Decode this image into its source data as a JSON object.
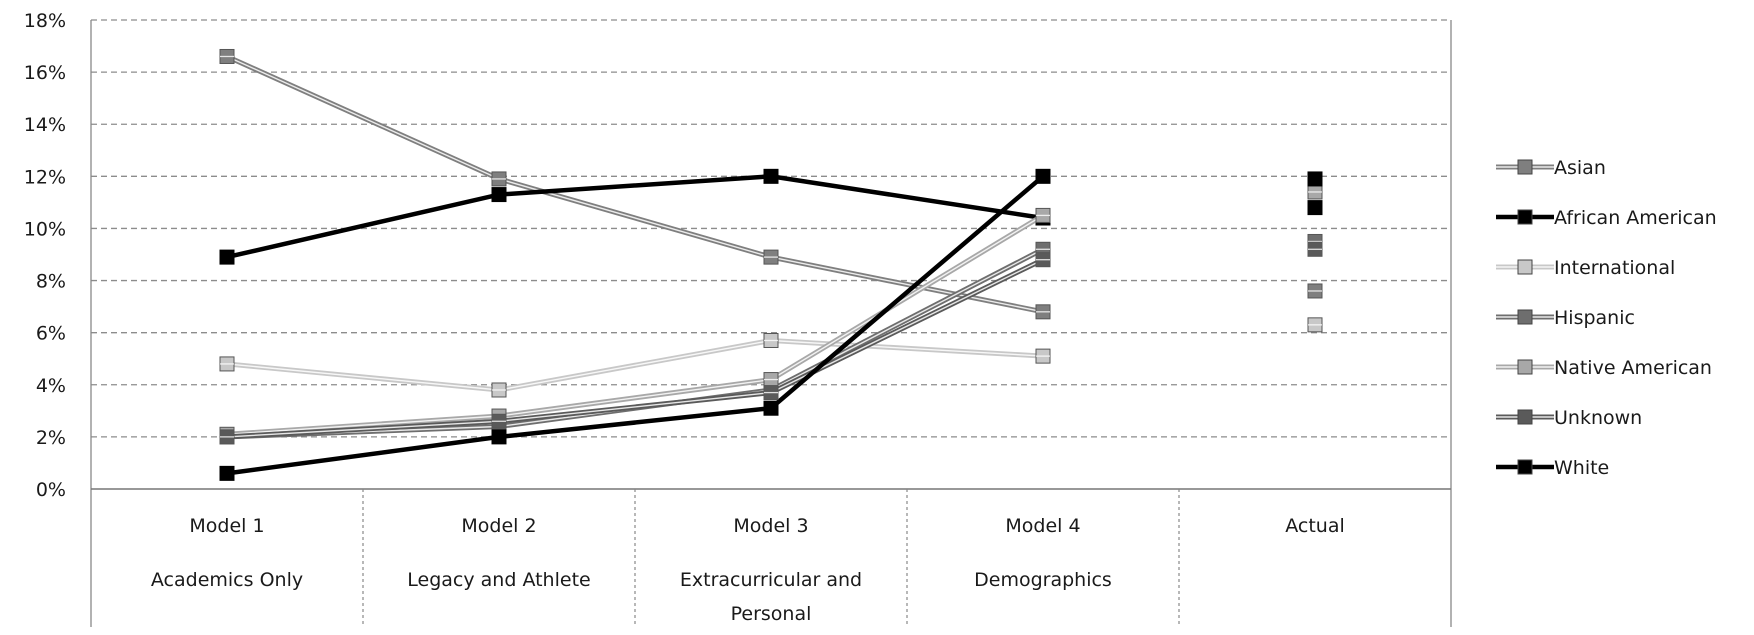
{
  "chart_data": {
    "type": "line",
    "title": "",
    "xlabel": "",
    "ylabel": "",
    "ylim": [
      0,
      18
    ],
    "y_ticks": [
      "0%",
      "2%",
      "4%",
      "6%",
      "8%",
      "10%",
      "12%",
      "14%",
      "16%",
      "18%"
    ],
    "grid": true,
    "legend_position": "right",
    "categories": [
      {
        "line1": "Model 1",
        "line2": "Academics Only"
      },
      {
        "line1": "Model 2",
        "line2": "Legacy and Athlete"
      },
      {
        "line1": "Model 3",
        "line2": "Extracurricular and Personal"
      },
      {
        "line1": "Model 4",
        "line2": "Demographics"
      },
      {
        "line1": "Actual",
        "line2": ""
      }
    ],
    "series": [
      {
        "name": "Asian",
        "color": "#7f7f7f",
        "style": "double",
        "values": [
          16.6,
          11.9,
          8.9,
          6.8,
          7.6
        ]
      },
      {
        "name": "African American",
        "color": "#000000",
        "style": "solid",
        "values": [
          8.9,
          11.3,
          12.0,
          10.4,
          10.8
        ]
      },
      {
        "name": "International",
        "color": "#c8c8c8",
        "style": "double",
        "values": [
          4.8,
          3.8,
          5.7,
          5.1,
          6.3
        ]
      },
      {
        "name": "Hispanic",
        "color": "#6e6e6e",
        "style": "double",
        "values": [
          2.0,
          2.4,
          3.8,
          9.2,
          9.5
        ]
      },
      {
        "name": "Native American",
        "color": "#a8a8a8",
        "style": "double",
        "values": [
          2.1,
          2.8,
          4.2,
          10.5,
          11.4
        ]
      },
      {
        "name": "Unknown",
        "color": "#5a5a5a",
        "style": "double",
        "values": [
          2.0,
          2.6,
          3.7,
          8.8,
          9.2
        ]
      },
      {
        "name": "White",
        "color": "#000000",
        "style": "solid",
        "values": [
          0.6,
          2.0,
          3.1,
          12.0,
          11.9
        ]
      }
    ]
  }
}
